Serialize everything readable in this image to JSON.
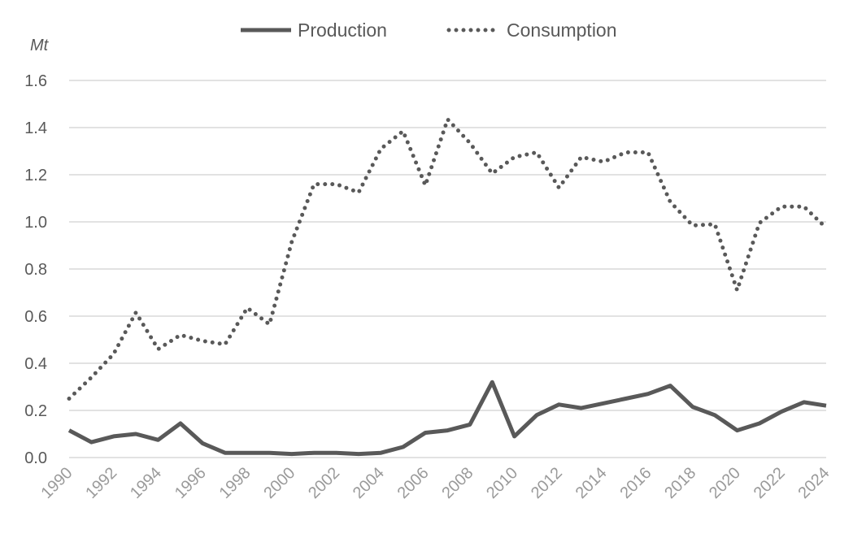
{
  "chart_data": {
    "type": "line",
    "title": "",
    "xlabel": "",
    "ylabel": "Mt",
    "ylim": [
      0,
      1.6
    ],
    "yticks": [
      "0.0",
      "0.2",
      "0.4",
      "0.6",
      "0.8",
      "1.0",
      "1.2",
      "1.4",
      "1.6"
    ],
    "ytick_values": [
      0,
      0.2,
      0.4,
      0.6,
      0.8,
      1.0,
      1.2,
      1.4,
      1.6
    ],
    "x": [
      1990,
      1991,
      1992,
      1993,
      1994,
      1995,
      1996,
      1997,
      1998,
      1999,
      2000,
      2001,
      2002,
      2003,
      2004,
      2005,
      2006,
      2007,
      2008,
      2009,
      2010,
      2011,
      2012,
      2013,
      2014,
      2015,
      2016,
      2017,
      2018,
      2019,
      2020,
      2021,
      2022,
      2023,
      2024
    ],
    "xticks": [
      "1990",
      "1992",
      "1994",
      "1996",
      "1998",
      "2000",
      "2002",
      "2004",
      "2006",
      "2008",
      "2010",
      "2012",
      "2014",
      "2016",
      "2018",
      "2020",
      "2022",
      "2024"
    ],
    "xtick_values": [
      1990,
      1992,
      1994,
      1996,
      1998,
      2000,
      2002,
      2004,
      2006,
      2008,
      2010,
      2012,
      2014,
      2016,
      2018,
      2020,
      2022,
      2024
    ],
    "grid": true,
    "legend_position": "top-center",
    "series": [
      {
        "name": "Production",
        "style": "solid",
        "color": "#595959",
        "values": [
          0.115,
          0.065,
          0.09,
          0.1,
          0.075,
          0.145,
          0.06,
          0.02,
          0.02,
          0.02,
          0.015,
          0.02,
          0.02,
          0.015,
          0.02,
          0.045,
          0.105,
          0.115,
          0.14,
          0.32,
          0.09,
          0.18,
          0.225,
          0.21,
          0.23,
          0.25,
          0.27,
          0.305,
          0.215,
          0.18,
          0.115,
          0.145,
          0.195,
          0.235,
          0.22
        ]
      },
      {
        "name": "Consumption",
        "style": "dotted",
        "color": "#595959",
        "values": [
          0.25,
          0.34,
          0.44,
          0.615,
          0.46,
          0.52,
          0.495,
          0.48,
          0.635,
          0.565,
          0.915,
          1.16,
          1.16,
          1.125,
          1.31,
          1.385,
          1.155,
          1.435,
          1.335,
          1.205,
          1.275,
          1.295,
          1.145,
          1.275,
          1.255,
          1.295,
          1.295,
          1.085,
          0.985,
          0.99,
          0.71,
          0.995,
          1.065,
          1.065,
          0.975
        ]
      }
    ]
  }
}
